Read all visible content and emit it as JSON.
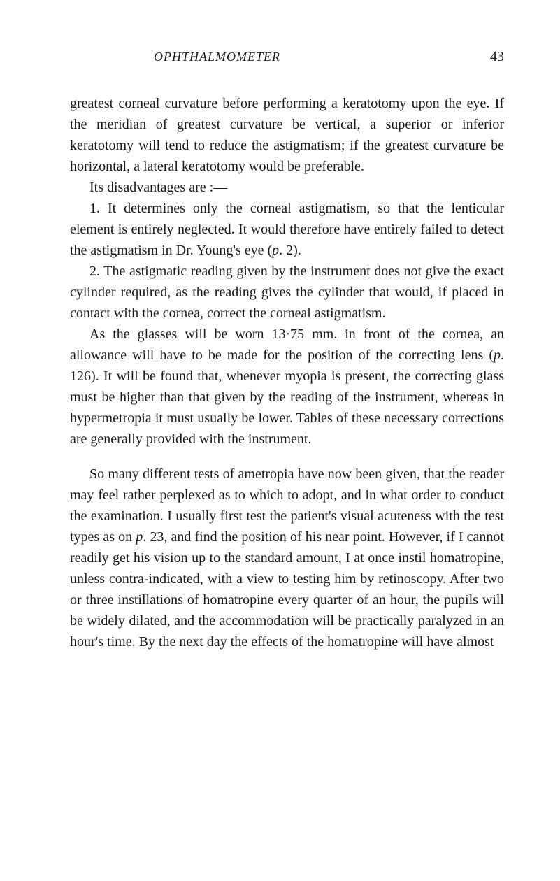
{
  "header": {
    "title": "OPHTHALMOMETER",
    "page_number": "43"
  },
  "paragraphs": {
    "p1": "greatest corneal curvature before performing a keratotomy upon the eye. If the meridian of greatest curvature be vertical, a superior or inferior keratotomy will tend to reduce the astigmatism; if the greatest curvature be horizontal, a lateral keratotomy would be preferable.",
    "p2": "Its disadvantages are :—",
    "p3_a": "1. It determines only the corneal astigmatism, so that the lenticular element is entirely neglected. It would therefore have entirely failed to detect the astigmatism in Dr. Young's eye (",
    "p3_b": "p",
    "p3_c": ". 2).",
    "p4": "2. The astigmatic reading given by the instrument does not give the exact cylinder required, as the reading gives the cylinder that would, if placed in contact with the cornea, correct the corneal astigmatism.",
    "p5_a": "As the glasses will be worn 13·75 mm. in front of the cornea, an allowance will have to be made for the position of the correcting lens (",
    "p5_b": "p",
    "p5_c": ". 126). It will be found that, whenever myopia is present, the correcting glass must be higher than that given by the reading of the instrument, whereas in hypermetropia it must usually be lower. Tables of these necessary corrections are generally provided with the instrument.",
    "p6_a": "So many different tests of ametropia have now been given, that the reader may feel rather perplexed as to which to adopt, and in what order to conduct the examination. I usually first test the patient's visual acuteness with the test types as on ",
    "p6_b": "p",
    "p6_c": ". 23, and find the position of his near point. However, if I cannot readily get his vision up to the standard amount, I at once instil homatropine, unless contra-indicated, with a view to testing him by retinoscopy. After two or three instillations of homatropine every quarter of an hour, the pupils will be widely dilated, and the accommodation will be practically paralyzed in an hour's time. By the next day the effects of the homatropine will have almost"
  }
}
